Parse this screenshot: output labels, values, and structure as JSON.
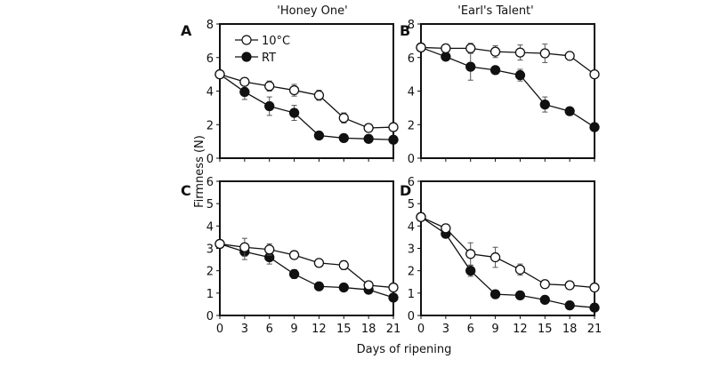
{
  "chart_data": {
    "type": "line",
    "xlabel": "Days of ripening",
    "ylabel": "Firmness (N)",
    "x": [
      0,
      3,
      6,
      9,
      12,
      15,
      18,
      21
    ],
    "x_ticks": [
      "0",
      "3",
      "6",
      "9",
      "12",
      "15",
      "18",
      "21"
    ],
    "column_titles": [
      "'Honey One'",
      "'Earl's Talent'"
    ],
    "legend": [
      {
        "name": "10°C",
        "marker": "open-circle"
      },
      {
        "name": "RT",
        "marker": "filled-circle"
      }
    ],
    "legend_placement": "top-left of panel A",
    "panels": [
      {
        "letter": "A",
        "ylim": [
          0,
          8
        ],
        "y_ticks": [
          "0",
          "2",
          "4",
          "6",
          "8"
        ],
        "series": [
          {
            "name": "10°C",
            "values": [
              5.0,
              4.55,
              4.3,
              4.05,
              3.75,
              2.4,
              1.8,
              1.85
            ],
            "errors": [
              0.2,
              0.15,
              0.3,
              0.35,
              0.3,
              0.3,
              0.1,
              0.1
            ]
          },
          {
            "name": "RT",
            "values": [
              5.0,
              3.95,
              3.1,
              2.7,
              1.35,
              1.2,
              1.15,
              1.1
            ],
            "errors": [
              0.2,
              0.45,
              0.55,
              0.45,
              0.15,
              0.1,
              0.1,
              0.15
            ]
          }
        ]
      },
      {
        "letter": "B",
        "ylim": [
          0,
          8
        ],
        "y_ticks": [
          "0",
          "2",
          "4",
          "6",
          "8"
        ],
        "series": [
          {
            "name": "10°C",
            "values": [
              6.6,
              6.55,
              6.55,
              6.35,
              6.3,
              6.25,
              6.1,
              5.0
            ],
            "errors": [
              0.1,
              0.1,
              0.3,
              0.35,
              0.45,
              0.55,
              0.1,
              0.1
            ]
          },
          {
            "name": "RT",
            "values": [
              6.6,
              6.05,
              5.45,
              5.25,
              4.95,
              3.2,
              2.8,
              1.85
            ],
            "errors": [
              0.1,
              0.2,
              0.8,
              0.15,
              0.35,
              0.45,
              0.15,
              0.1
            ]
          }
        ]
      },
      {
        "letter": "C",
        "ylim": [
          0,
          6
        ],
        "y_ticks": [
          "0",
          "1",
          "2",
          "3",
          "4",
          "5",
          "6"
        ],
        "series": [
          {
            "name": "10°C",
            "values": [
              3.2,
              3.05,
              2.95,
              2.7,
              2.35,
              2.25,
              1.35,
              1.25
            ],
            "errors": [
              0.1,
              0.4,
              0.25,
              0.1,
              0.15,
              0.2,
              0.1,
              0.1
            ]
          },
          {
            "name": "RT",
            "values": [
              3.2,
              2.85,
              2.6,
              1.85,
              1.3,
              1.25,
              1.15,
              0.8
            ],
            "errors": [
              0.1,
              0.35,
              0.3,
              0.2,
              0.1,
              0.1,
              0.1,
              0.1
            ]
          }
        ]
      },
      {
        "letter": "D",
        "ylim": [
          0,
          6
        ],
        "y_ticks": [
          "0",
          "1",
          "2",
          "3",
          "4",
          "5",
          "6"
        ],
        "series": [
          {
            "name": "10°C",
            "values": [
              4.4,
              3.9,
              2.75,
              2.6,
              2.05,
              1.4,
              1.35,
              1.25
            ],
            "errors": [
              0.1,
              0.1,
              0.5,
              0.45,
              0.25,
              0.1,
              0.1,
              0.1
            ]
          },
          {
            "name": "RT",
            "values": [
              4.4,
              3.65,
              2.0,
              0.95,
              0.9,
              0.7,
              0.45,
              0.35
            ],
            "errors": [
              0.1,
              0.1,
              0.25,
              0.1,
              0.1,
              0.1,
              0.1,
              0.1
            ]
          }
        ]
      }
    ]
  }
}
